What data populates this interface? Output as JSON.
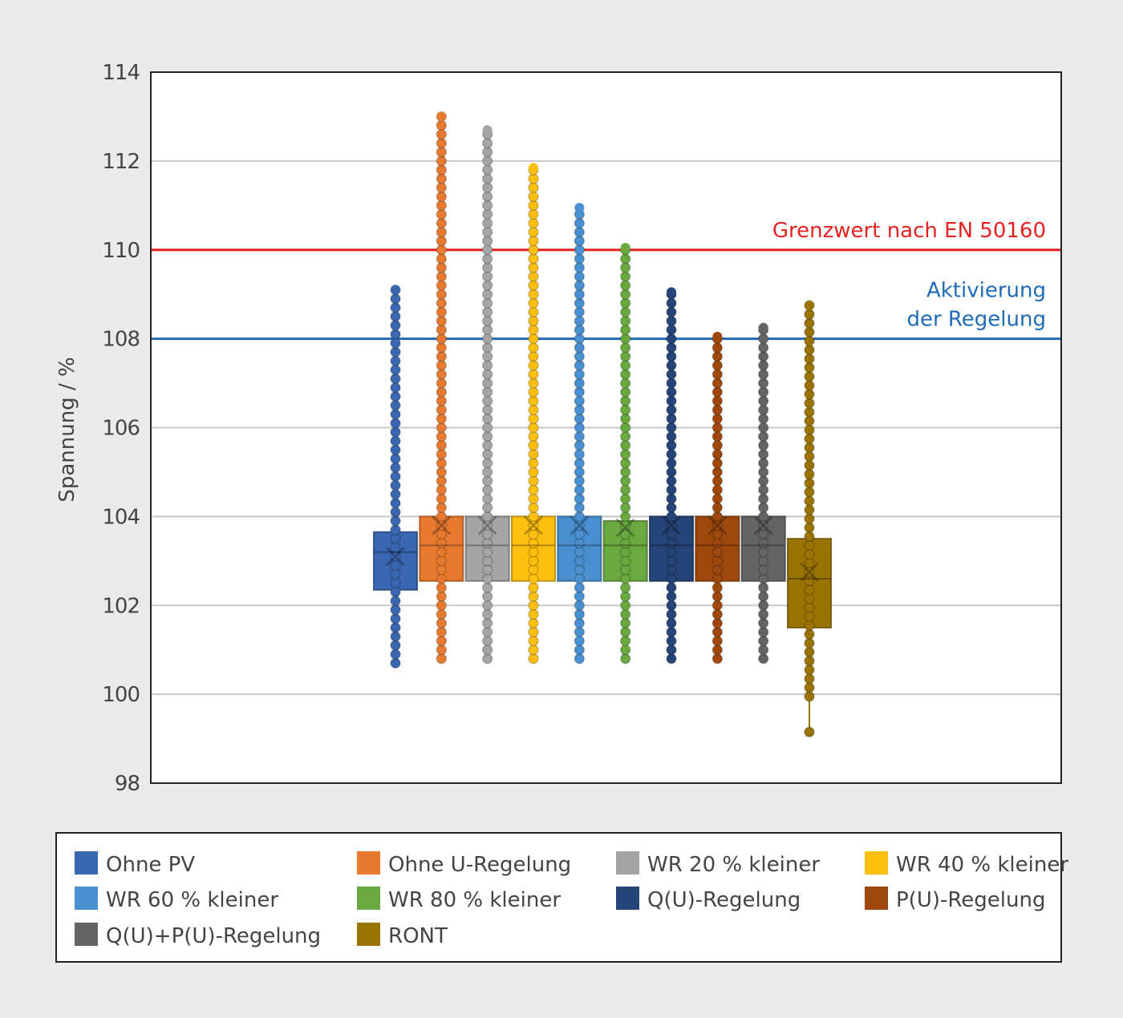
{
  "chart_data": {
    "type": "boxplot",
    "ylabel": "Spannung / %",
    "ylim": [
      98,
      114
    ],
    "yticks": [
      98,
      100,
      102,
      104,
      106,
      108,
      110,
      112,
      114
    ],
    "grid": true,
    "legend_position": "bottom",
    "reference_lines": [
      {
        "value": 110,
        "label": [
          "Grenzwert nach EN 50160"
        ],
        "color": "#e52421"
      },
      {
        "value": 108,
        "label": [
          "Aktivierung",
          "der Regelung"
        ],
        "color": "#1f6bb5"
      }
    ],
    "series": [
      {
        "name": "Ohne PV",
        "color": "#3a67b1",
        "min": 100.7,
        "q1": 102.35,
        "median": 103.2,
        "q3": 103.65,
        "max": 109.1,
        "mean": 103.1
      },
      {
        "name": "Ohne U-Regelung",
        "color": "#e87a30",
        "min": 100.8,
        "q1": 102.55,
        "median": 103.35,
        "q3": 104.0,
        "max": 113.0,
        "mean": 103.8
      },
      {
        "name": "WR 20 % kleiner",
        "color": "#a5a5a5",
        "min": 100.8,
        "q1": 102.55,
        "median": 103.35,
        "q3": 104.0,
        "max": 112.7,
        "mean": 103.8
      },
      {
        "name": "WR 40 % kleiner",
        "color": "#fdbf10",
        "min": 100.8,
        "q1": 102.55,
        "median": 103.35,
        "q3": 104.0,
        "max": 111.85,
        "mean": 103.8
      },
      {
        "name": "WR 60 % kleiner",
        "color": "#4a90d0",
        "min": 100.8,
        "q1": 102.55,
        "median": 103.35,
        "q3": 104.0,
        "max": 110.95,
        "mean": 103.8
      },
      {
        "name": "WR 80 % kleiner",
        "color": "#6aa840",
        "min": 100.8,
        "q1": 102.55,
        "median": 103.35,
        "q3": 103.9,
        "max": 110.05,
        "mean": 103.75
      },
      {
        "name": "Q(U)-Regelung",
        "color": "#254478",
        "min": 100.8,
        "q1": 102.55,
        "median": 103.35,
        "q3": 104.0,
        "max": 109.05,
        "mean": 103.8
      },
      {
        "name": "P(U)-Regelung",
        "color": "#9e480e",
        "min": 100.8,
        "q1": 102.55,
        "median": 103.35,
        "q3": 104.0,
        "max": 108.05,
        "mean": 103.8
      },
      {
        "name": "Q(U)+P(U)-Regelung",
        "color": "#646464",
        "min": 100.8,
        "q1": 102.55,
        "median": 103.35,
        "q3": 104.0,
        "max": 108.25,
        "mean": 103.8
      },
      {
        "name": "RONT",
        "color": "#9a7400",
        "min": 99.15,
        "q1": 101.5,
        "median": 102.6,
        "q3": 103.5,
        "max": 108.75,
        "mean": 102.75
      }
    ]
  }
}
